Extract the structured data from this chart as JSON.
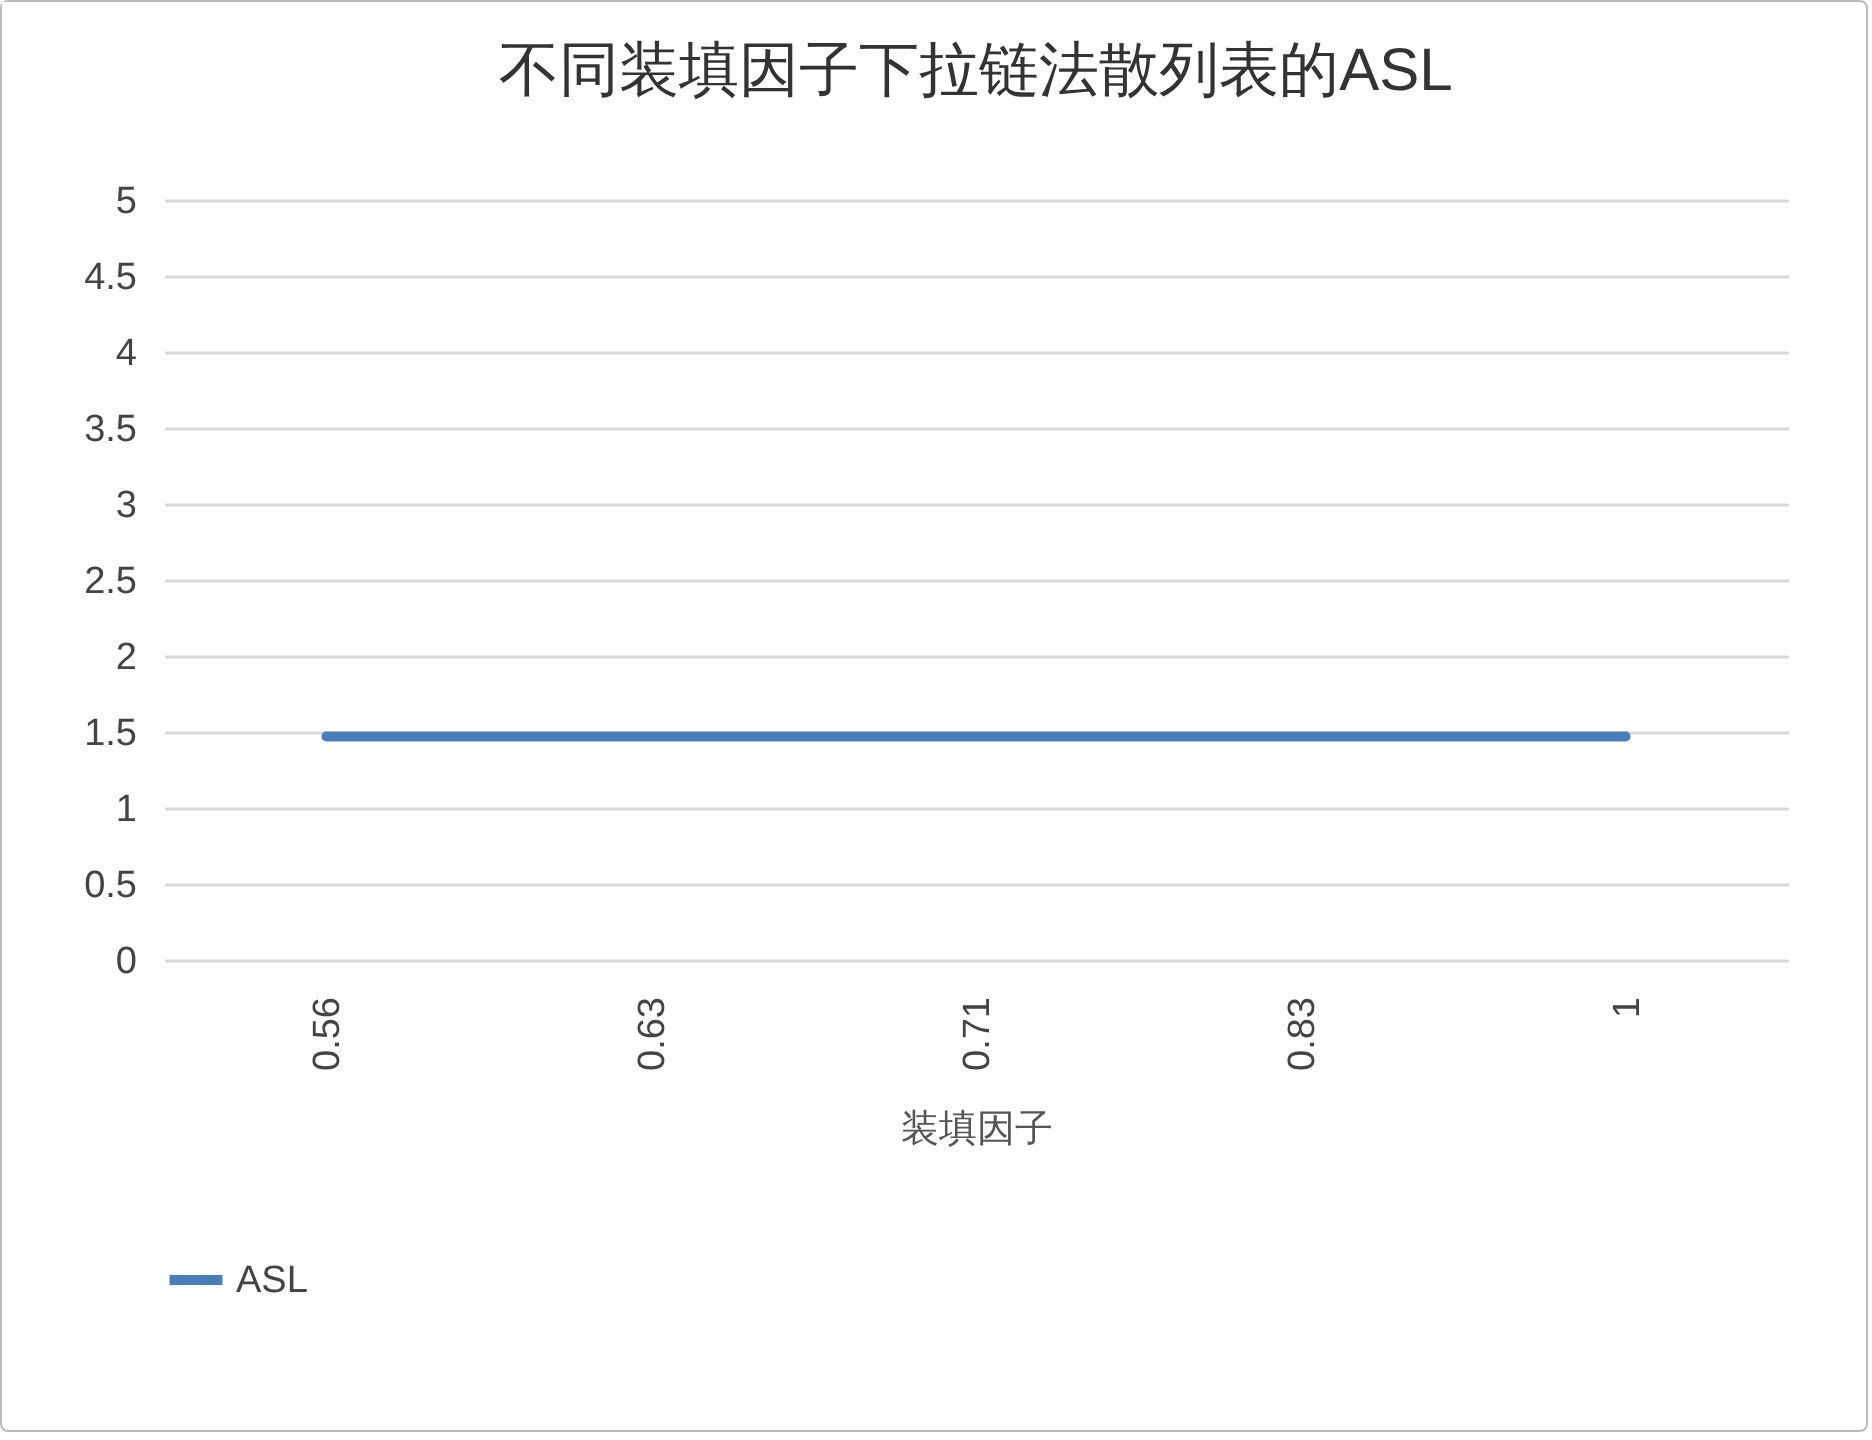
{
  "chart_data": {
    "type": "line",
    "title": "不同装填因子下拉链法散列表的ASL",
    "xlabel": "装填因子",
    "categories": [
      "0.56",
      "0.63",
      "0.71",
      "0.83",
      "1"
    ],
    "series": [
      {
        "name": "ASL",
        "color": "#4a7ebb",
        "values": [
          1.47,
          1.47,
          1.47,
          1.47,
          1.47
        ]
      }
    ],
    "ylim": [
      0,
      5
    ],
    "yticks": [
      0,
      0.5,
      1,
      1.5,
      2,
      2.5,
      3,
      3.5,
      4,
      4.5,
      5
    ],
    "grid": "y",
    "legend": "bottom",
    "marker": "none"
  }
}
